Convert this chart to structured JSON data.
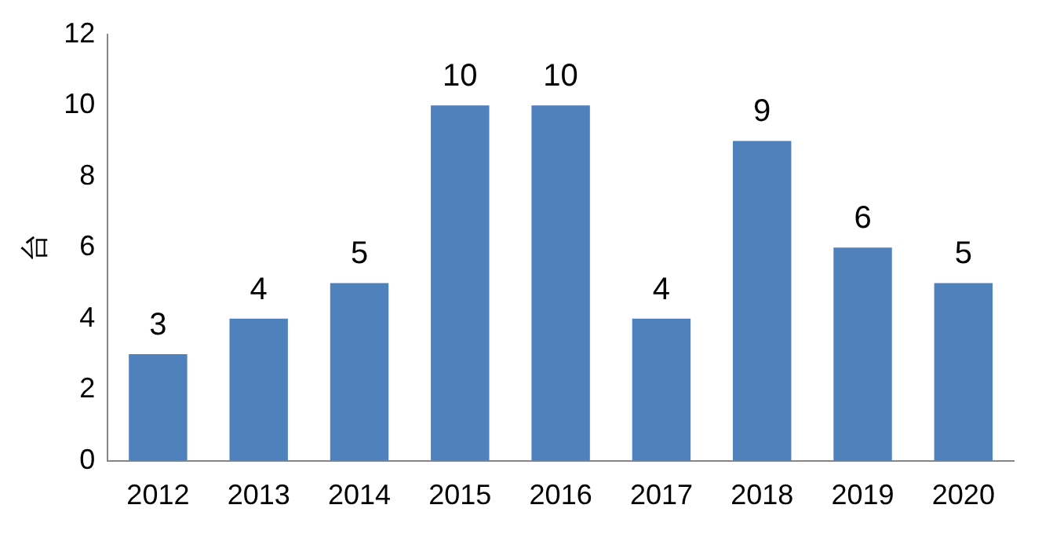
{
  "chart_data": {
    "type": "bar",
    "ylabel": "台",
    "categories": [
      "2012",
      "2013",
      "2014",
      "2015",
      "2016",
      "2017",
      "2018",
      "2019",
      "2020"
    ],
    "values": [
      3,
      4,
      5,
      10,
      10,
      4,
      9,
      6,
      5
    ],
    "color": "#4f81bd",
    "ylim": [
      0,
      12
    ],
    "yticks": [
      0,
      2,
      4,
      6,
      8,
      10,
      12
    ],
    "grid": false,
    "legend": false,
    "data_labels": true
  }
}
